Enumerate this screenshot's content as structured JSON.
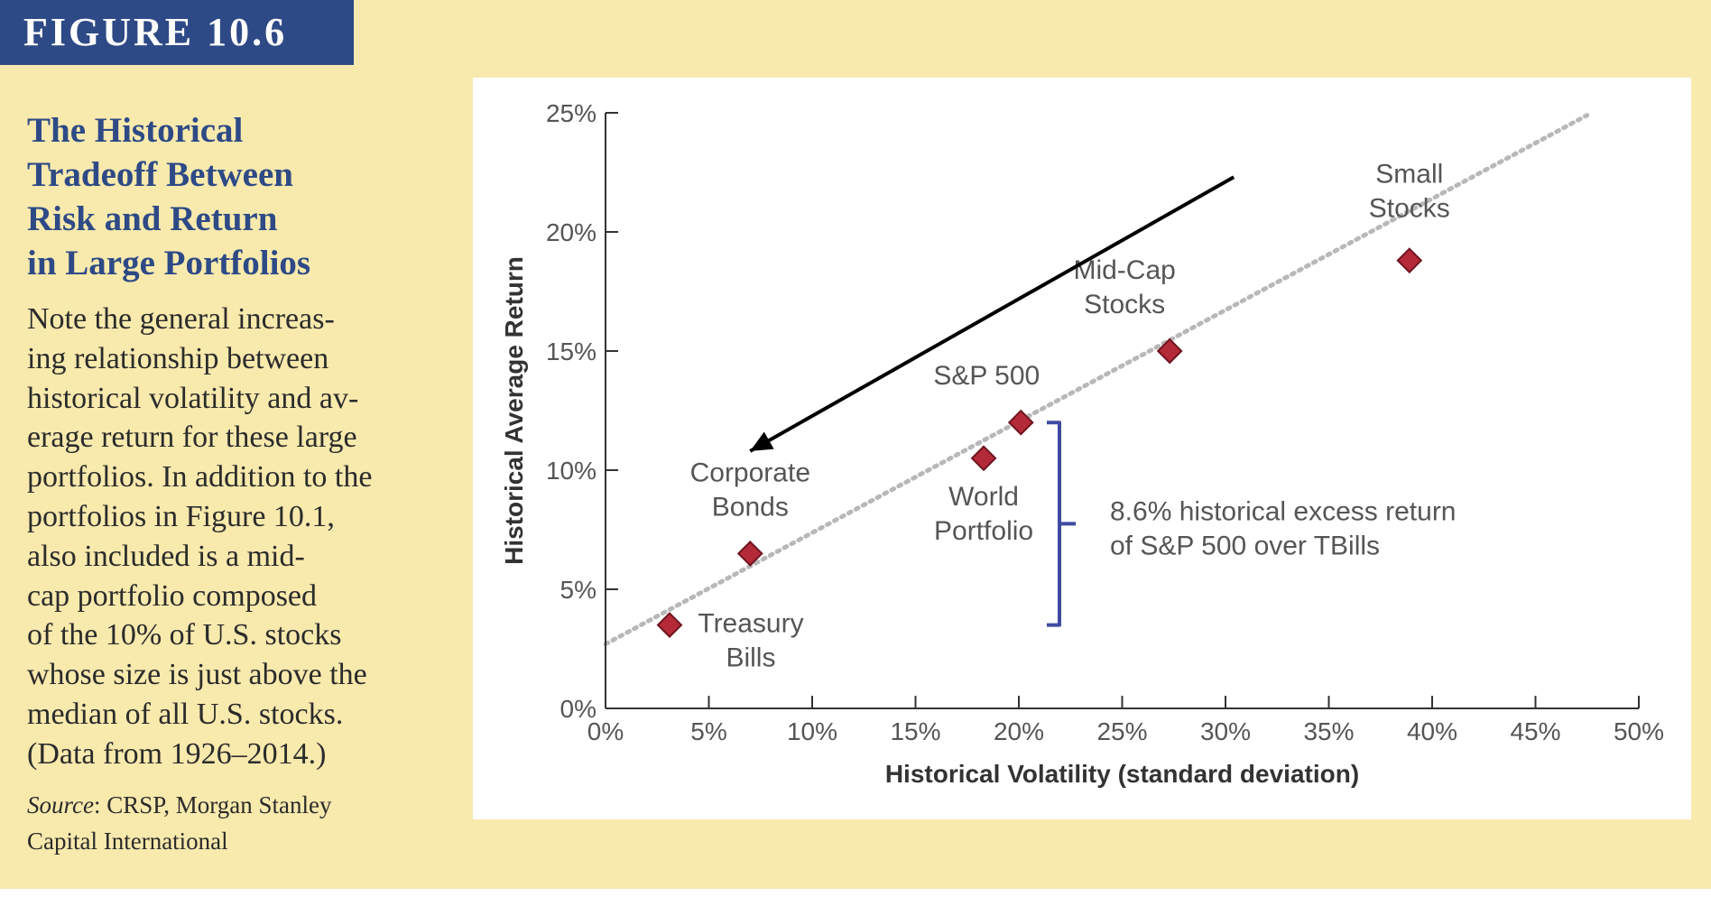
{
  "figure_label": "FIGURE 10.6",
  "caption": {
    "title_lines": [
      "The Historical",
      "Tradeoff Between",
      "Risk and Return",
      "in Large Portfolios"
    ],
    "body_lines": [
      "Note the general increas-",
      "ing relationship between",
      "historical volatility and av-",
      "erage return for these large",
      "portfolios. In addition to the",
      "portfolios in Figure 10.1,",
      "also included is a mid-",
      "cap portfolio composed",
      "of the 10% of U.S. stocks",
      "whose size is just above the",
      "median of all U.S. stocks.",
      "(Data from 1926–2014.)"
    ],
    "source_label": "Source",
    "source_lines": [
      ": CRSP, Morgan Stanley",
      "Capital International"
    ]
  },
  "chart_data": {
    "type": "scatter",
    "xlabel": "Historical Volatility (standard deviation)",
    "ylabel": "Historical Average Return",
    "xlim": [
      0,
      50
    ],
    "ylim": [
      0,
      25
    ],
    "x_ticks": [
      "0%",
      "5%",
      "10%",
      "15%",
      "20%",
      "25%",
      "30%",
      "35%",
      "40%",
      "45%",
      "50%"
    ],
    "y_ticks": [
      "0%",
      "5%",
      "10%",
      "15%",
      "20%",
      "25%"
    ],
    "points": [
      {
        "label": [
          "Treasury",
          "Bills"
        ],
        "x": 3.1,
        "y": 3.5
      },
      {
        "label": [
          "Corporate",
          "Bonds"
        ],
        "x": 7.0,
        "y": 6.5
      },
      {
        "label": [
          "World",
          "Portfolio"
        ],
        "x": 18.3,
        "y": 10.5
      },
      {
        "label": [
          "S&P 500"
        ],
        "x": 20.1,
        "y": 12.0
      },
      {
        "label": [
          "Mid-Cap",
          "Stocks"
        ],
        "x": 27.3,
        "y": 15.0
      },
      {
        "label": [
          "Small",
          "Stocks"
        ],
        "x": 38.9,
        "y": 18.8
      }
    ],
    "trend_line": {
      "x_start": 0,
      "y_start": 2.7,
      "x_end": 47.5,
      "y_end": 24.9,
      "style": "dotted"
    },
    "annotation": {
      "text_lines": [
        "8.6% historical excess return",
        "of S&P 500 over TBills"
      ],
      "bracket_from_y": 3.5,
      "bracket_to_y": 12.0
    },
    "arrow": {
      "x_start": 30.4,
      "y_start": 22.3,
      "x_end": 7.0,
      "y_end": 10.8
    },
    "grid": false,
    "colors": {
      "marker": "#b52a38",
      "marker_edge": "#6e1420",
      "trend": "#b8b8b8",
      "bracket": "#3f4aa0",
      "arrow": "#000000",
      "axis": "#333333"
    }
  }
}
